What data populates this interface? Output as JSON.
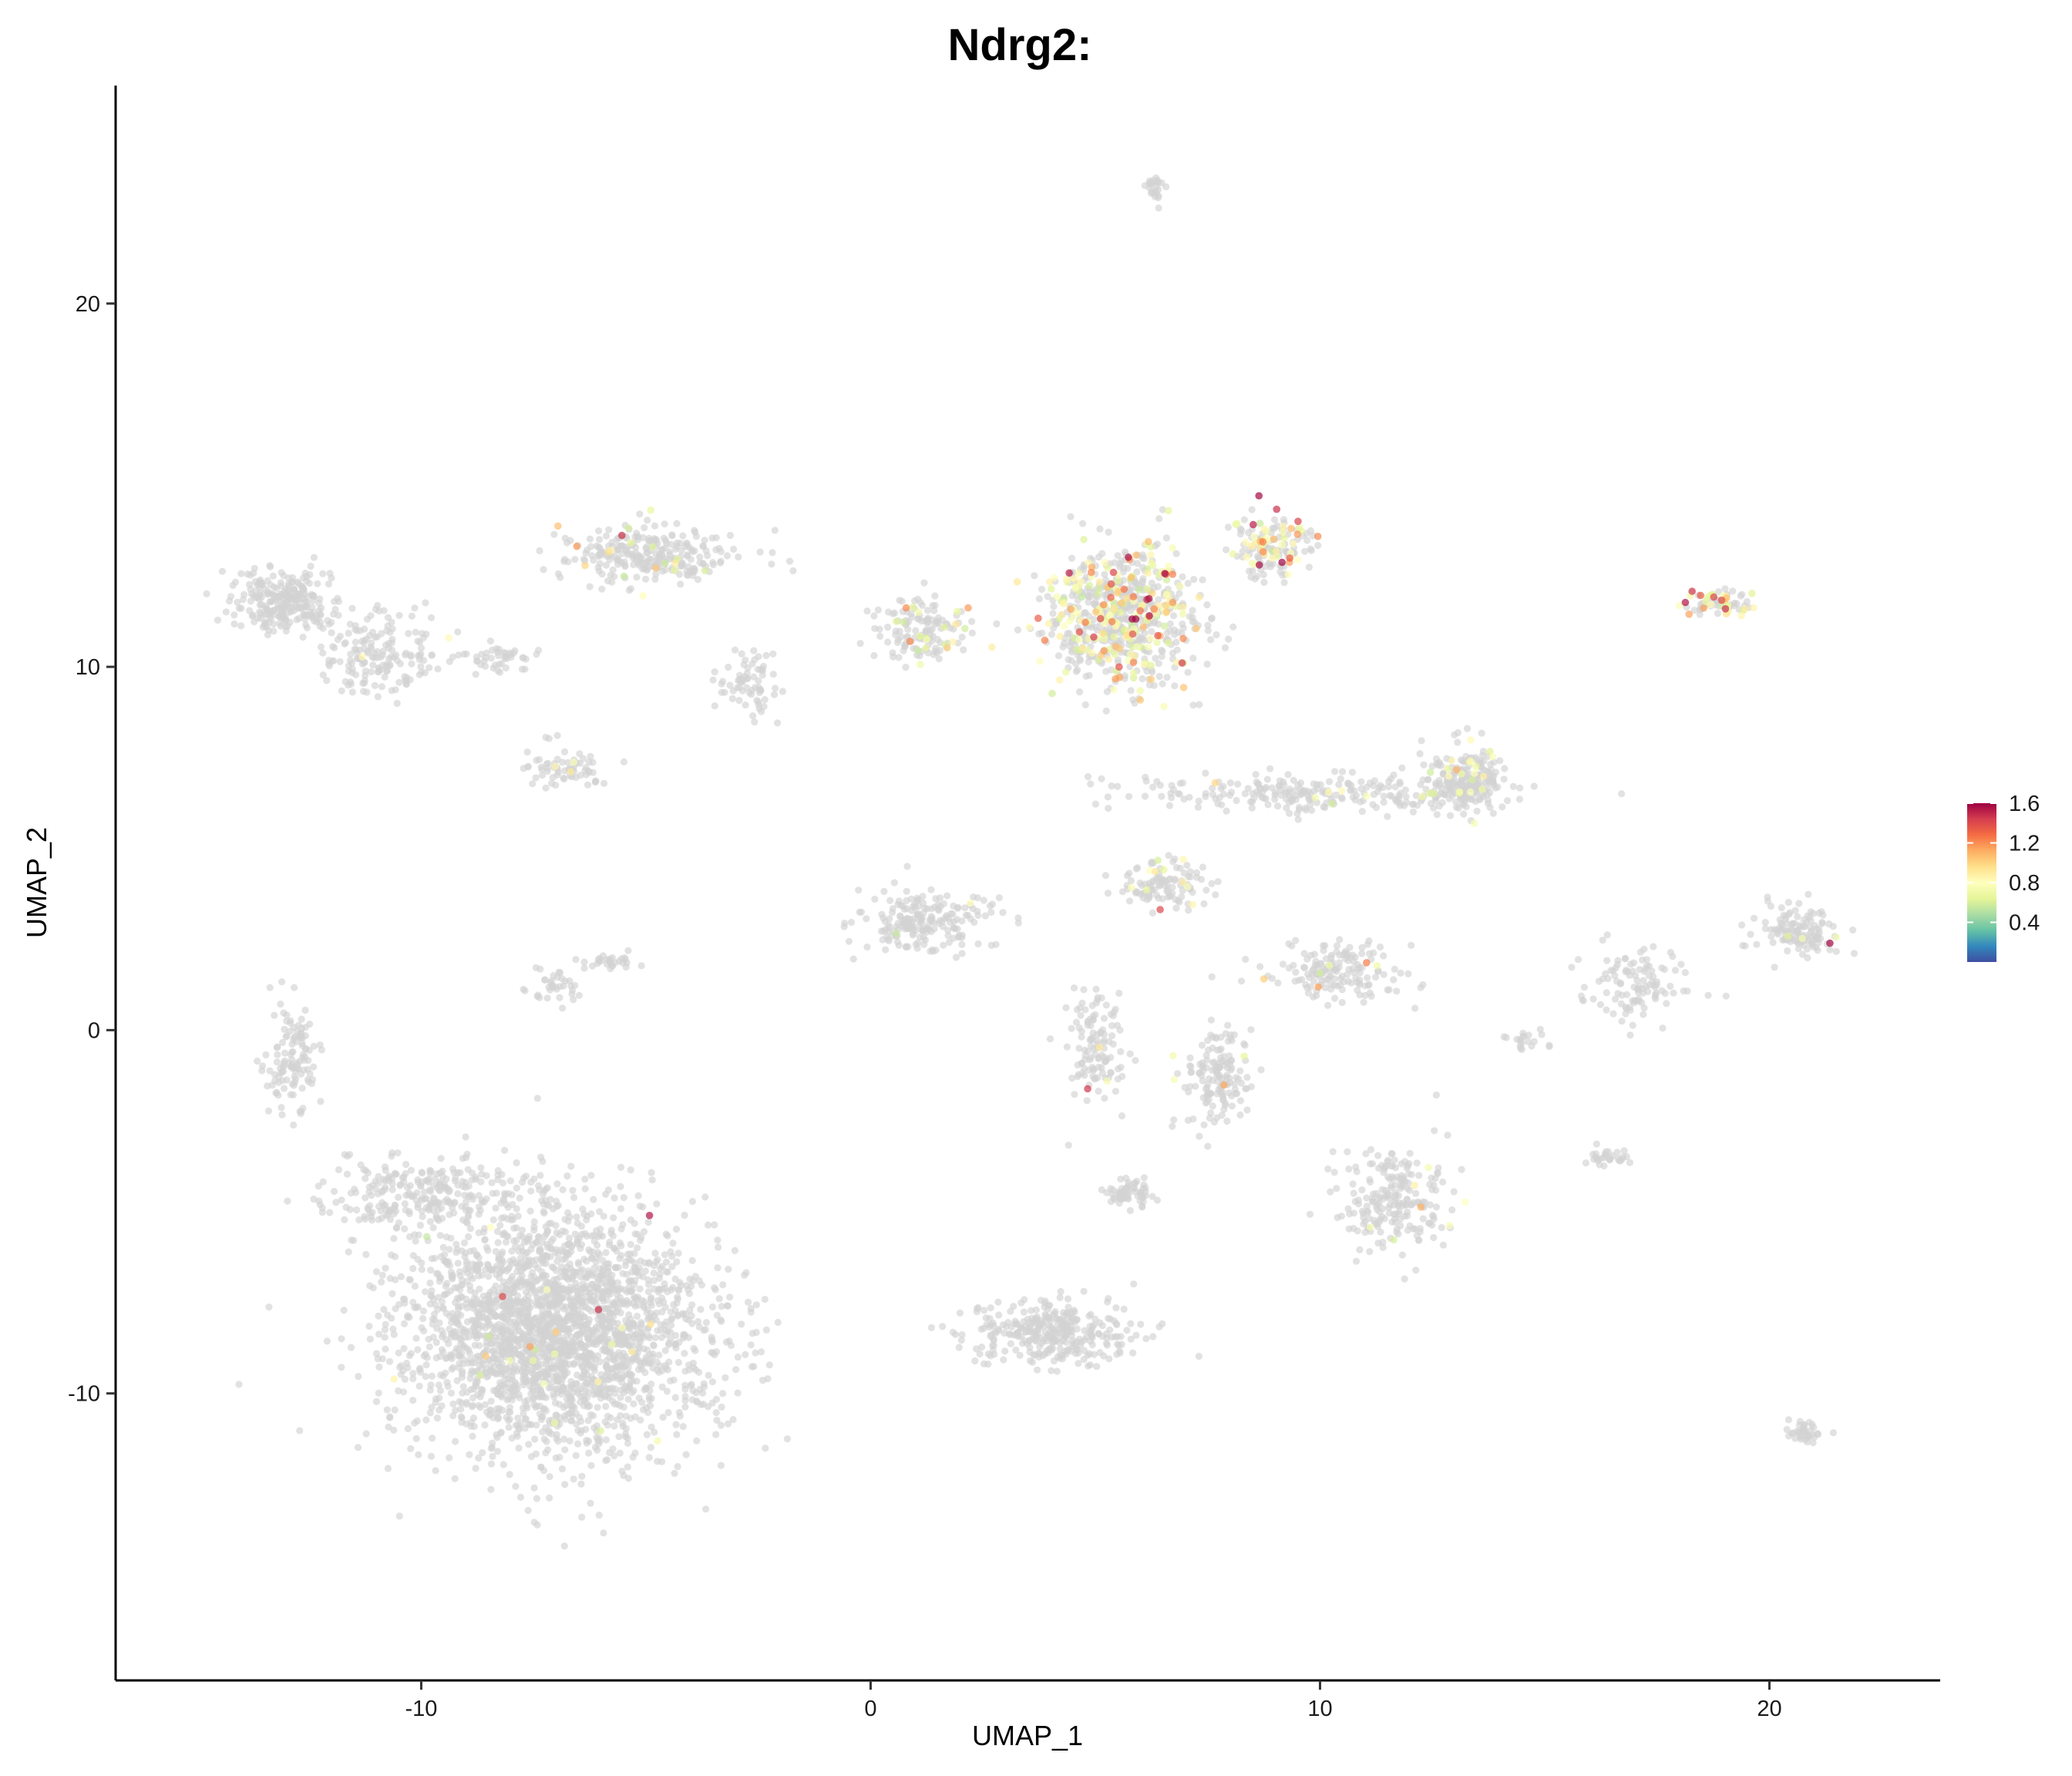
{
  "chart_data": {
    "type": "scatter",
    "title": "Ndrg2:",
    "xlabel": "UMAP_1",
    "ylabel": "UMAP_2",
    "xlim": [
      -16.8,
      23.8
    ],
    "ylim": [
      -17.9,
      26.0
    ],
    "xticks": [
      -10,
      0,
      10,
      20
    ],
    "yticks": [
      -10,
      0,
      10,
      20
    ],
    "grid": false,
    "legend": {
      "position": "right",
      "type": "colorbar",
      "range": [
        0.0,
        1.6
      ],
      "ticks": [
        0.4,
        0.8,
        1.2,
        1.6
      ],
      "colors": [
        "#3f4ea1",
        "#3288bd",
        "#66c2a5",
        "#abdda4",
        "#e6f598",
        "#ffffbf",
        "#fee08b",
        "#fdae61",
        "#f46d43",
        "#d53e4f",
        "#9e0142"
      ]
    },
    "background_point_color": "#d3d3d3",
    "clusters": [
      {
        "cx": -7.0,
        "cy": -8.3,
        "sx": 3.1,
        "sy": 3.0,
        "n": 2600,
        "expr": 0.01
      },
      {
        "cx": -10.0,
        "cy": -4.5,
        "sx": 2.2,
        "sy": 0.8,
        "n": 260,
        "expr": 0.0
      },
      {
        "cx": -12.9,
        "cy": -0.8,
        "sx": 0.5,
        "sy": 1.4,
        "n": 120,
        "expr": 0.0
      },
      {
        "cx": -13.0,
        "cy": 11.8,
        "sx": 1.0,
        "sy": 0.8,
        "n": 260,
        "expr": 0.0
      },
      {
        "cx": -10.9,
        "cy": 10.3,
        "sx": 1.2,
        "sy": 1.0,
        "n": 170,
        "expr": 0.01
      },
      {
        "cx": -8.3,
        "cy": 10.2,
        "sx": 0.8,
        "sy": 0.3,
        "n": 45,
        "expr": 0.0
      },
      {
        "cx": -6.9,
        "cy": 7.2,
        "sx": 0.9,
        "sy": 0.5,
        "n": 70,
        "expr": 0.06
      },
      {
        "cx": -7.0,
        "cy": 1.2,
        "sx": 0.5,
        "sy": 0.4,
        "n": 35,
        "expr": 0.0
      },
      {
        "cx": -5.9,
        "cy": 1.9,
        "sx": 0.7,
        "sy": 0.2,
        "n": 30,
        "expr": 0.0
      },
      {
        "cx": -5.0,
        "cy": 13.1,
        "sx": 1.8,
        "sy": 0.7,
        "n": 270,
        "expr": 0.05
      },
      {
        "cx": -2.7,
        "cy": 9.5,
        "sx": 0.6,
        "sy": 1.1,
        "n": 70,
        "expr": 0.02
      },
      {
        "cx": 1.1,
        "cy": 11.0,
        "sx": 1.0,
        "sy": 0.8,
        "n": 140,
        "expr": 0.14
      },
      {
        "cx": 5.5,
        "cy": 11.4,
        "sx": 1.6,
        "sy": 1.7,
        "n": 700,
        "expr": 0.3
      },
      {
        "cx": 8.9,
        "cy": 13.3,
        "sx": 0.8,
        "sy": 0.8,
        "n": 150,
        "expr": 0.3
      },
      {
        "cx": 6.3,
        "cy": 23.2,
        "sx": 0.2,
        "sy": 0.4,
        "n": 25,
        "expr": 0.0
      },
      {
        "cx": 9.7,
        "cy": 6.5,
        "sx": 3.5,
        "sy": 0.5,
        "n": 240,
        "expr": 0.03
      },
      {
        "cx": 13.2,
        "cy": 6.9,
        "sx": 0.8,
        "sy": 0.8,
        "n": 220,
        "expr": 0.12
      },
      {
        "cx": 18.9,
        "cy": 11.8,
        "sx": 0.6,
        "sy": 0.3,
        "n": 80,
        "expr": 0.35
      },
      {
        "cx": 1.2,
        "cy": 3.0,
        "sx": 1.3,
        "sy": 0.8,
        "n": 200,
        "expr": 0.03
      },
      {
        "cx": 6.5,
        "cy": 4.0,
        "sx": 0.9,
        "sy": 0.6,
        "n": 110,
        "expr": 0.06
      },
      {
        "cx": 5.0,
        "cy": -0.5,
        "sx": 0.6,
        "sy": 1.5,
        "n": 120,
        "expr": 0.02
      },
      {
        "cx": 7.7,
        "cy": -1.3,
        "sx": 0.7,
        "sy": 1.2,
        "n": 150,
        "expr": 0.02
      },
      {
        "cx": 5.8,
        "cy": -4.5,
        "sx": 0.5,
        "sy": 0.4,
        "n": 60,
        "expr": 0.03
      },
      {
        "cx": 10.3,
        "cy": 1.6,
        "sx": 1.4,
        "sy": 0.7,
        "n": 160,
        "expr": 0.02
      },
      {
        "cx": 11.6,
        "cy": -4.7,
        "sx": 1.1,
        "sy": 1.4,
        "n": 220,
        "expr": 0.02
      },
      {
        "cx": 4.0,
        "cy": -8.3,
        "sx": 1.6,
        "sy": 0.8,
        "n": 330,
        "expr": 0.0
      },
      {
        "cx": 20.6,
        "cy": 2.7,
        "sx": 0.8,
        "sy": 0.6,
        "n": 130,
        "expr": 0.02
      },
      {
        "cx": 17.0,
        "cy": 1.3,
        "sx": 1.3,
        "sy": 1.0,
        "n": 110,
        "expr": 0.02
      },
      {
        "cx": 16.4,
        "cy": -3.5,
        "sx": 0.4,
        "sy": 0.2,
        "n": 30,
        "expr": 0.0
      },
      {
        "cx": 20.8,
        "cy": -11.1,
        "sx": 0.4,
        "sy": 0.3,
        "n": 40,
        "expr": 0.0
      },
      {
        "cx": 14.6,
        "cy": -0.3,
        "sx": 0.4,
        "sy": 0.3,
        "n": 20,
        "expr": 0.0
      }
    ]
  }
}
